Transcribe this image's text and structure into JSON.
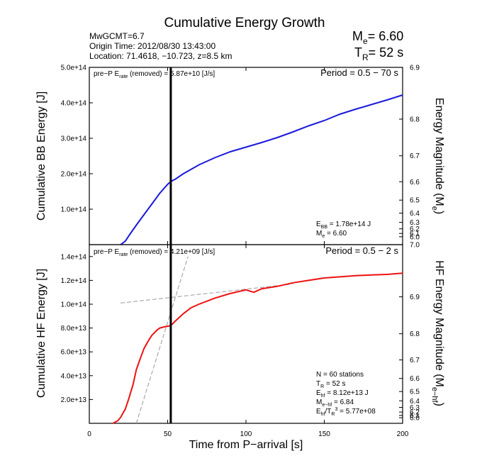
{
  "title": "Cumulative Energy Growth",
  "header": {
    "event": "MwGCMT=6.7",
    "origin_time": "Origin Time: 2012/08/30 13:43:00",
    "location": "Location: 71.4618, −10.723, z=8.5 km",
    "me_label": "M",
    "me_sub": "e",
    "me_value": "= 6.60",
    "tr_label": "T",
    "tr_sub": "R",
    "tr_value": "= 52 s"
  },
  "xlabel": "Time from P−arrival [s]",
  "colors": {
    "bb": "#1a1adb",
    "hf": "#ee1111",
    "marker": "#000000",
    "dashed": "#9a9a9a"
  },
  "chart_data": [
    {
      "type": "line",
      "panel": "top",
      "ylabel": "Cumulative BB Energy [J]",
      "y2label_main": "Energy Magnitude (M",
      "y2label_sub": "e",
      "y2label_end": ")",
      "xlim": [
        0,
        200
      ],
      "ylim": [
        0,
        500000000000000.0
      ],
      "x_ticks": [
        0,
        50,
        100,
        150,
        200
      ],
      "y_ticks": [
        100000000000000.0,
        200000000000000.0,
        300000000000000.0,
        400000000000000.0,
        500000000000000.0
      ],
      "y_tick_labels": [
        "1.0e+14",
        "2.0e+14",
        "3.0e+14",
        "4.0e+14",
        "5.0e+14"
      ],
      "y2_ticks": [
        6.0,
        6.1,
        6.2,
        6.3,
        6.4,
        6.5,
        6.6,
        6.7,
        6.8,
        6.9
      ],
      "y2_tick_labels": [
        "6.0",
        "6.1",
        "6.2",
        "6.3",
        "6.4",
        "6.5",
        "6.6",
        "6.7",
        "6.8",
        "6.9"
      ],
      "annotation_left_a": "pre−P E",
      "annotation_left_sub": "rate",
      "annotation_left_b": " (removed) = 5.87e+10 [J/s]",
      "period": "Period = 0.5 − 70 s",
      "stats": [
        {
          "main": "E",
          "sub": "BB",
          "rest": " = 1.78e+14 J"
        },
        {
          "main": "M",
          "sub": "e",
          "rest": " = 6.60"
        }
      ],
      "series": [
        {
          "x": [
            20,
            23,
            26,
            30,
            35,
            40,
            45,
            50,
            52,
            55,
            60,
            70,
            80,
            90,
            100,
            110,
            120,
            130,
            140,
            150,
            160,
            170,
            180,
            190,
            200
          ],
          "y": [
            0,
            10000000000000.0,
            30000000000000.0,
            55000000000000.0,
            85000000000000.0,
            115000000000000.0,
            145000000000000.0,
            170000000000000.0,
            178000000000000.0,
            185000000000000.0,
            200000000000000.0,
            225000000000000.0,
            245000000000000.0,
            262000000000000.0,
            275000000000000.0,
            288000000000000.0,
            302000000000000.0,
            318000000000000.0,
            335000000000000.0,
            350000000000000.0,
            368000000000000.0,
            382000000000000.0,
            395000000000000.0,
            408000000000000.0,
            422000000000000.0
          ]
        }
      ]
    },
    {
      "type": "line",
      "panel": "bottom",
      "ylabel": "Cumulative HF Energy [J]",
      "y2label_main": "HF Energy Magnitude (M",
      "y2label_sub": "e−hf",
      "y2label_end": ")",
      "xlim": [
        0,
        200
      ],
      "ylim": [
        0,
        150000000000000.0
      ],
      "x_ticks": [
        0,
        50,
        100,
        150,
        200
      ],
      "x_tick_labels": [
        "0",
        "50",
        "100",
        "150",
        "200"
      ],
      "y_ticks": [
        20000000000000.0,
        40000000000000.0,
        60000000000000.0,
        80000000000000.0,
        100000000000000.0,
        120000000000000.0,
        140000000000000.0
      ],
      "y_tick_labels": [
        "2.0e+13",
        "4.0e+13",
        "6.0e+13",
        "8.0e+13",
        "1.0e+14",
        "1.2e+14",
        "1.4e+14"
      ],
      "y2_ticks": [
        6.0,
        6.1,
        6.2,
        6.3,
        6.4,
        6.5,
        6.6,
        6.7,
        6.8,
        6.9,
        7.0
      ],
      "y2_tick_labels": [
        "6.0",
        "6.1",
        "6.2",
        "6.3",
        "6.4",
        "6.5",
        "6.6",
        "6.7",
        "6.8",
        "6.9",
        "7.0"
      ],
      "annotation_left_a": "pre−P E",
      "annotation_left_sub": "rate",
      "annotation_left_b": " (removed) = 4.21e+09 [J/s]",
      "period": "Period = 0.5 − 2 s",
      "stats": [
        {
          "main": "N = 60 stations",
          "sub": "",
          "rest": ""
        },
        {
          "main": "T",
          "sub": "R",
          "rest": " = 52  s"
        },
        {
          "main": "E",
          "sub": "hf",
          "rest": " = 8.12e+13 J"
        },
        {
          "main": "M",
          "sub": "e−hf",
          "rest": " = 6.84"
        },
        {
          "main": "E",
          "sub": "hf",
          "rest": "/T",
          "sub2": "R",
          "sup": "3",
          "rest2": " =  5.77e+08"
        }
      ],
      "series": [
        {
          "x": [
            15,
            18,
            20,
            23,
            25,
            28,
            30,
            33,
            35,
            38,
            40,
            43,
            45,
            48,
            50,
            52,
            55,
            60,
            65,
            70,
            80,
            90,
            100,
            105,
            110,
            120,
            130,
            140,
            150,
            160,
            170,
            180,
            190,
            200
          ],
          "y": [
            0,
            2000000000000.0,
            5000000000000.0,
            12000000000000.0,
            20000000000000.0,
            33000000000000.0,
            45000000000000.0,
            56000000000000.0,
            63000000000000.0,
            70000000000000.0,
            74000000000000.0,
            78000000000000.0,
            80000000000000.0,
            81000000000000.0,
            81500000000000.0,
            82000000000000.0,
            86000000000000.0,
            92000000000000.0,
            97000000000000.0,
            100000000000000.0,
            105000000000000.0,
            109000000000000.0,
            112000000000000.0,
            110000000000000.0,
            113000000000000.0,
            115000000000000.0,
            118000000000000.0,
            120000000000000.0,
            122000000000000.0,
            123000000000000.0,
            124000000000000.0,
            124500000000000.0,
            125000000000000.0,
            126000000000000.0
          ]
        }
      ],
      "dashed_lines": [
        {
          "x": [
            20,
            130
          ],
          "y": [
            101000000000000.0,
            117000000000000.0
          ]
        },
        {
          "x": [
            30,
            63
          ],
          "y": [
            0.0,
            140000000000000.0
          ]
        }
      ]
    }
  ],
  "marker_x": 52
}
